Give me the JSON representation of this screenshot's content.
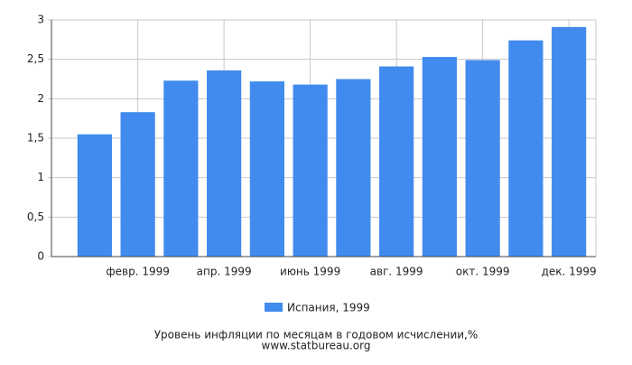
{
  "chart_data": {
    "type": "bar",
    "title": "Уровень инфляции по месяцам в годовом исчислении,%",
    "subtitle": "www.statbureau.org",
    "categories": [
      null,
      "февр. 1999",
      null,
      "апр. 1999",
      null,
      "июнь 1999",
      null,
      "авг. 1999",
      null,
      "окт. 1999",
      null,
      "дек. 1999"
    ],
    "series": [
      {
        "name": "Испания, 1999",
        "color": "#418bef",
        "values": [
          1.55,
          1.83,
          2.23,
          2.36,
          2.22,
          2.18,
          2.25,
          2.41,
          2.53,
          2.49,
          2.74,
          2.91
        ]
      }
    ],
    "ylim": [
      0,
      3
    ],
    "yticks": [
      0,
      {
        "value": 0.5,
        "label": "0,5"
      },
      1,
      {
        "value": 1.5,
        "label": "1,5"
      },
      2,
      {
        "value": 2.5,
        "label": "2,5"
      },
      3
    ],
    "grid": true
  }
}
